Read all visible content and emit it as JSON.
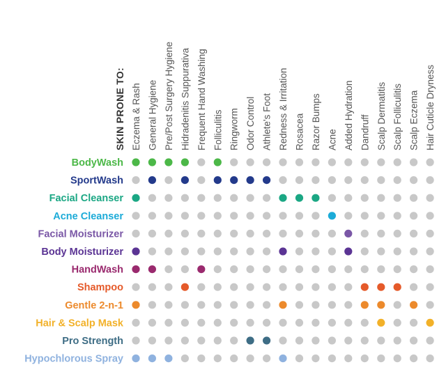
{
  "chart_data": {
    "type": "table",
    "heading": "SKIN PRONE TO:",
    "columns": [
      "Eczema & Rash",
      "General Hygiene",
      "Pre/Post Surgery Hygiene",
      "Hidradenitis Suppurativa",
      "Frequent Hand Washing",
      "Folliculitis",
      "Ringworm",
      "Odor Control",
      "Athlete's Foot",
      "Redness & Irritation",
      "Rosacea",
      "Razor Bumps",
      "Acne",
      "Added Hydration",
      "Dandruff",
      "Scalp Dermatitis",
      "Scalp Folliculitis",
      "Scalp Eczema",
      "Hair Cuticle Dryness"
    ],
    "rows": [
      {
        "label": "BodyWash",
        "color": "#4cb848",
        "marked": [
          0,
          1,
          2,
          3,
          5
        ]
      },
      {
        "label": "SportWash",
        "color": "#233a8b",
        "marked": [
          1,
          3,
          5,
          6,
          7,
          8
        ]
      },
      {
        "label": "Facial Cleanser",
        "color": "#1ba784",
        "marked": [
          0,
          9,
          10,
          11
        ]
      },
      {
        "label": "Acne Cleanser",
        "color": "#1cabd8",
        "marked": [
          12
        ]
      },
      {
        "label": "Facial Moisturizer",
        "color": "#7a57a6",
        "marked": [
          13
        ]
      },
      {
        "label": "Body Moisturizer",
        "color": "#5b3494",
        "marked": [
          0,
          9,
          13
        ]
      },
      {
        "label": "HandWash",
        "color": "#9a2a6e",
        "marked": [
          0,
          1,
          4
        ]
      },
      {
        "label": "Shampoo",
        "color": "#e55a2a",
        "marked": [
          3,
          14,
          15,
          16
        ]
      },
      {
        "label": "Gentle 2-n-1",
        "color": "#ec8a2c",
        "marked": [
          0,
          9,
          14,
          15,
          17
        ]
      },
      {
        "label": "Hair & Scalp Mask",
        "color": "#f2b129",
        "marked": [
          15,
          18
        ]
      },
      {
        "label": "Pro Strength",
        "color": "#3e6d85",
        "marked": [
          7,
          8
        ]
      },
      {
        "label": "Hypochlorous Spray",
        "color": "#8fb2df",
        "marked": [
          0,
          1,
          2,
          9
        ]
      }
    ],
    "inactive_color": "#c8c8c8"
  }
}
